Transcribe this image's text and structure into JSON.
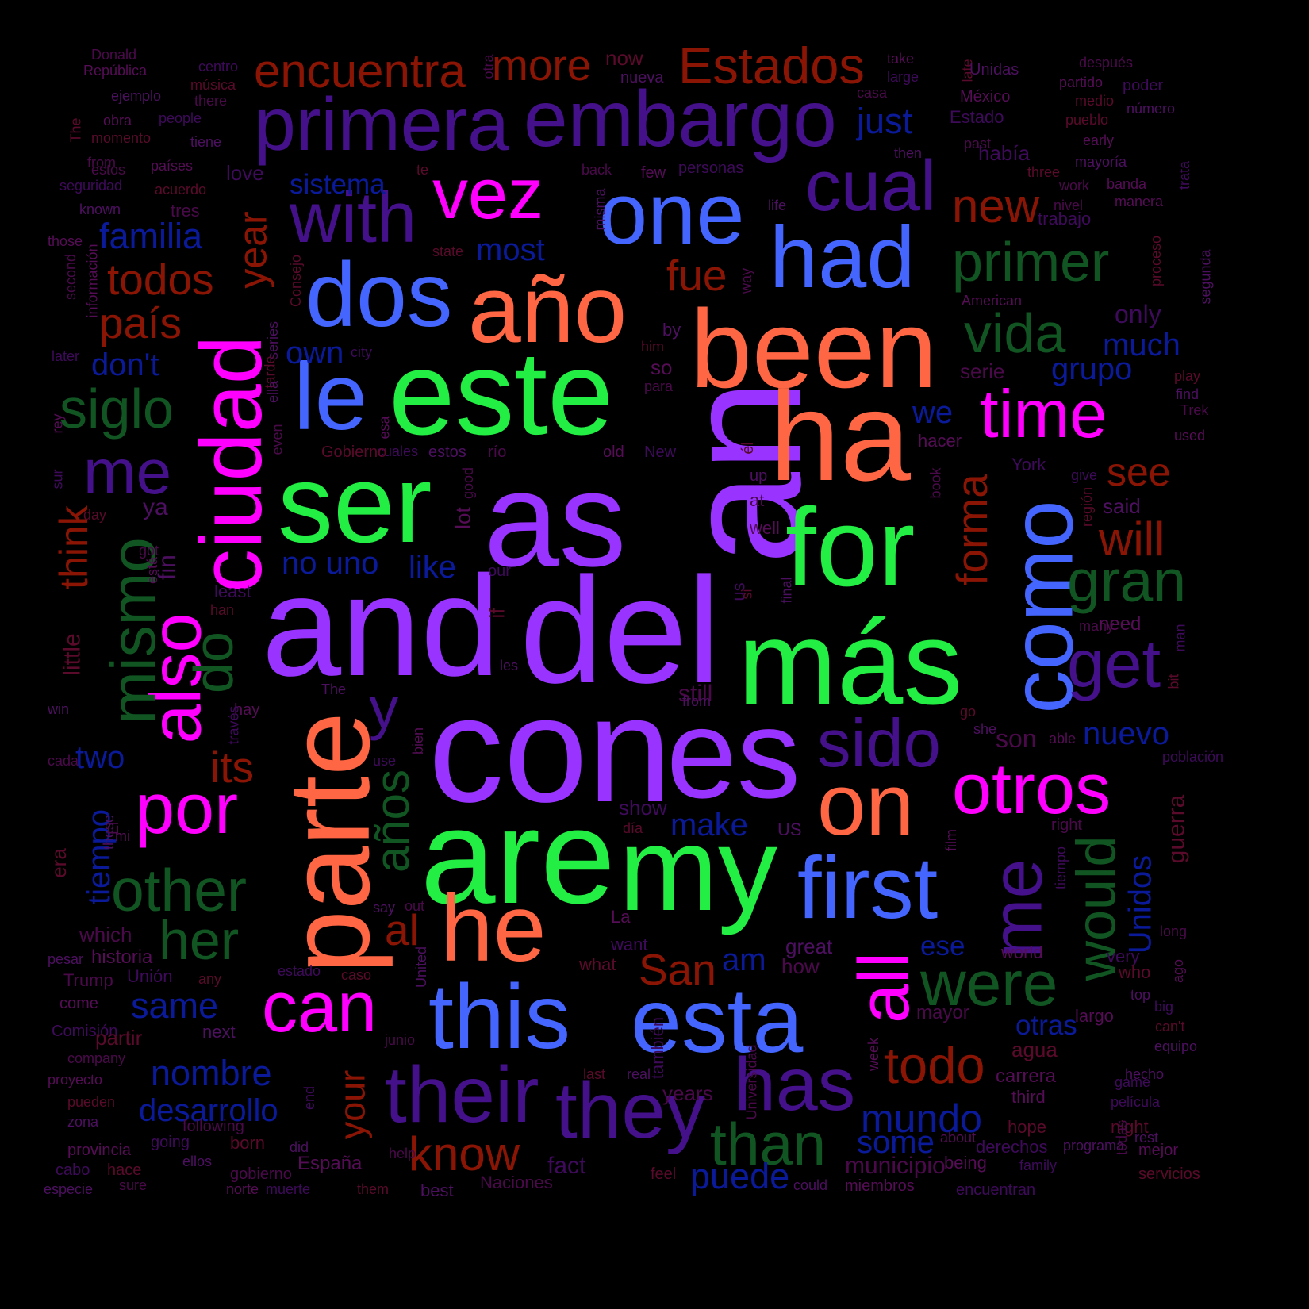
{
  "colors": {
    "background": "#000000",
    "purple": "#9933ff",
    "green": "#22ee44",
    "orange": "#ff6644",
    "magenta": "#ff00ff",
    "blue": "#4466ff",
    "indigo": "#44118a",
    "darkgreen": "#115522",
    "darkred": "#8a1505",
    "navy": "#0a1a99",
    "plum": "#4a0a4a"
  },
  "words": [
    "an",
    "and",
    "del",
    "con",
    "es",
    "are",
    "as",
    "este",
    "ser",
    "más",
    "for",
    "my",
    "ha",
    "been",
    "parte",
    "ciudad",
    "año",
    "dos",
    "le",
    "one",
    "had",
    "vez",
    "time",
    "on",
    "otros",
    "he",
    "this",
    "esta",
    "first",
    "como",
    "por",
    "can",
    "also",
    "all",
    "embargo",
    "primera",
    "with",
    "cual",
    "their",
    "they",
    "has",
    "sido",
    "me",
    "me",
    "get",
    "y",
    "primer",
    "vida",
    "gran",
    "siglo",
    "mismo",
    "do",
    "other",
    "her",
    "años",
    "were",
    "would",
    "than",
    "Estados",
    "encuentra",
    "more",
    "new",
    "todos",
    "país",
    "fue",
    "year",
    "will",
    "see",
    "forma",
    "think",
    "its",
    "al",
    "San",
    "todo",
    "know",
    "familia",
    "just",
    "sistema",
    "most",
    "don't",
    "own",
    "grupo",
    "much",
    "we",
    "no uno",
    "like",
    "two",
    "make",
    "same",
    "nombre",
    "desarrollo",
    "mundo",
    "some",
    "puede",
    "nuevo",
    "am",
    "ese",
    "otras",
    "Unidos",
    "tiempo",
    "through",
    "your"
  ],
  "small_words": [
    "Donald",
    "República",
    "centro",
    "música",
    "ejemplo",
    "there",
    "obra",
    "people",
    "momento",
    "tiene",
    "from",
    "países",
    "seguridad",
    "acuerdo",
    "known",
    "tres",
    "those",
    "love",
    "now",
    "nueva",
    "otra",
    "take",
    "large",
    "late",
    "Unidas",
    "después",
    "partido",
    "poder",
    "medio",
    "número",
    "casa",
    "México",
    "Estado",
    "pueblo",
    "then",
    "past",
    "early",
    "había",
    "three",
    "mayoría",
    "work",
    "banda",
    "trata",
    "state",
    "misma",
    "back",
    "few",
    "personas",
    "te",
    "life",
    "nivel",
    "manera",
    "trabajo",
    "proceso",
    "segunda",
    "way",
    "American",
    "only",
    "play",
    "find",
    "Trek",
    "used",
    "give",
    "región",
    "said",
    "serie",
    "hacer",
    "York",
    "him",
    "by",
    "para",
    "so",
    "city",
    "Consejo",
    "series",
    "second",
    "información",
    "later",
    "tarde",
    "ella",
    "even",
    "esa",
    "cuales",
    "Gobierno",
    "estos",
    "río",
    "old",
    "New",
    "él",
    "up",
    "at",
    "well",
    "us",
    "si",
    "final",
    "book",
    "rey",
    "sur",
    "day",
    "ya",
    "got",
    "está",
    "least",
    "han",
    "fin",
    "good",
    "lot",
    "our",
    "if",
    "les",
    "many",
    "need",
    "man",
    "bit",
    "The",
    "still",
    "hay",
    "través",
    "little",
    "win",
    "cada",
    "bien",
    "use",
    "go",
    "she",
    "son",
    "able",
    "población",
    "guerra",
    "these",
    "El",
    "mi",
    "show",
    "día",
    "US",
    "right",
    "film",
    "tiempo",
    "era",
    "say",
    "out",
    "La",
    "want",
    "what",
    "great",
    "how",
    "world",
    "very",
    "who",
    "top",
    "long",
    "ago",
    "big",
    "can't",
    "equipo",
    "which",
    "historia",
    "Unión",
    "any",
    "pesar",
    "Trump",
    "come",
    "estado",
    "caso",
    "United",
    "mayor",
    "largo",
    "Comisión",
    "partir",
    "next",
    "junio",
    "week",
    "también",
    "agua",
    "hecho",
    "company",
    "proyecto",
    "end",
    "last",
    "real",
    "Universidad",
    "carrera",
    "game",
    "pueden",
    "zona",
    "years",
    "third",
    "película",
    "night",
    "rest",
    "following",
    "provincia",
    "going",
    "born",
    "did",
    "help",
    "about",
    "derechos",
    "hope",
    "programa",
    "todas",
    "mejor",
    "cabo",
    "hace",
    "ellos",
    "gobierno",
    "España",
    "fact",
    "feel",
    "could",
    "municipio",
    "being",
    "family",
    "servicios",
    "especie",
    "sure",
    "norte",
    "muerte",
    "them",
    "best",
    "Naciones",
    "miembros",
    "encuentran",
    "The",
    "from",
    "estos"
  ]
}
